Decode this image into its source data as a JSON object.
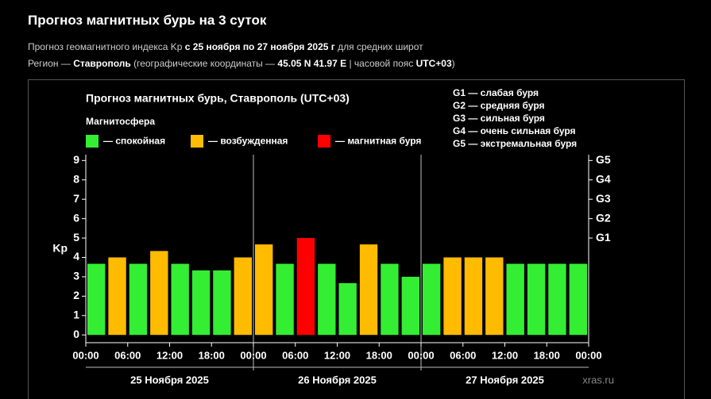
{
  "header": {
    "title": "Прогноз магнитных бурь на 3 суток",
    "line1": [
      "Прогноз геомагнитного индекса Kp ",
      "с 25 ноября по 27 ноября 2025 г",
      " для средних широт"
    ],
    "line2": [
      "Регион — ",
      "Ставрополь",
      " (географические координаты — ",
      "45.05 N 41.97 E",
      " | часовой пояс ",
      "UTC+03",
      ")"
    ]
  },
  "chart_data": {
    "type": "bar",
    "title": "Прогноз магнитных бурь, Ставрополь (UTC+03)",
    "legend_title": "Магнитосфера",
    "legend": [
      {
        "name": "— спокойная",
        "color": "#33ee33"
      },
      {
        "name": "— возбужденная",
        "color": "#ffbb00"
      },
      {
        "name": "— магнитная буря",
        "color": "#ff0000"
      }
    ],
    "storm_scale": [
      "G1 — слабая буря",
      "G2 — средняя буря",
      "G3 — сильная буря",
      "G4 — очень сильная буря",
      "G5 — экстремальная буря"
    ],
    "y_label": "Kp",
    "values": [
      3.67,
      4.0,
      3.67,
      4.33,
      3.67,
      3.33,
      3.33,
      4.0,
      4.67,
      3.67,
      5.0,
      3.67,
      2.67,
      4.67,
      3.67,
      3.0,
      3.67,
      4.0,
      4.0,
      4.0,
      3.67,
      3.67,
      3.67,
      3.67
    ],
    "colors": [
      "#33ee33",
      "#ffbb00",
      "#33ee33",
      "#ffbb00",
      "#33ee33",
      "#33ee33",
      "#33ee33",
      "#ffbb00",
      "#ffbb00",
      "#33ee33",
      "#ff0000",
      "#33ee33",
      "#33ee33",
      "#ffbb00",
      "#33ee33",
      "#33ee33",
      "#33ee33",
      "#ffbb00",
      "#ffbb00",
      "#ffbb00",
      "#33ee33",
      "#33ee33",
      "#33ee33",
      "#33ee33"
    ],
    "xticks": [
      "00:00",
      "06:00",
      "12:00",
      "18:00",
      "00:00",
      "06:00",
      "12:00",
      "18:00",
      "00:00",
      "06:00",
      "12:00",
      "18:00",
      "00:00"
    ],
    "days": [
      "25 Ноября 2025",
      "26 Ноября 2025",
      "27 Ноября 2025"
    ],
    "ylim": [
      -0.4,
      9.3
    ],
    "yticks": [
      0,
      1,
      2,
      3,
      4,
      5,
      6,
      7,
      8,
      9
    ],
    "y2ticks": [
      {
        "value": 5,
        "label": "G1"
      },
      {
        "value": 6,
        "label": "G2"
      },
      {
        "value": 7,
        "label": "G3"
      },
      {
        "value": 8,
        "label": "G4"
      },
      {
        "value": 9,
        "label": "G5"
      }
    ],
    "watermark": "xras.ru"
  }
}
